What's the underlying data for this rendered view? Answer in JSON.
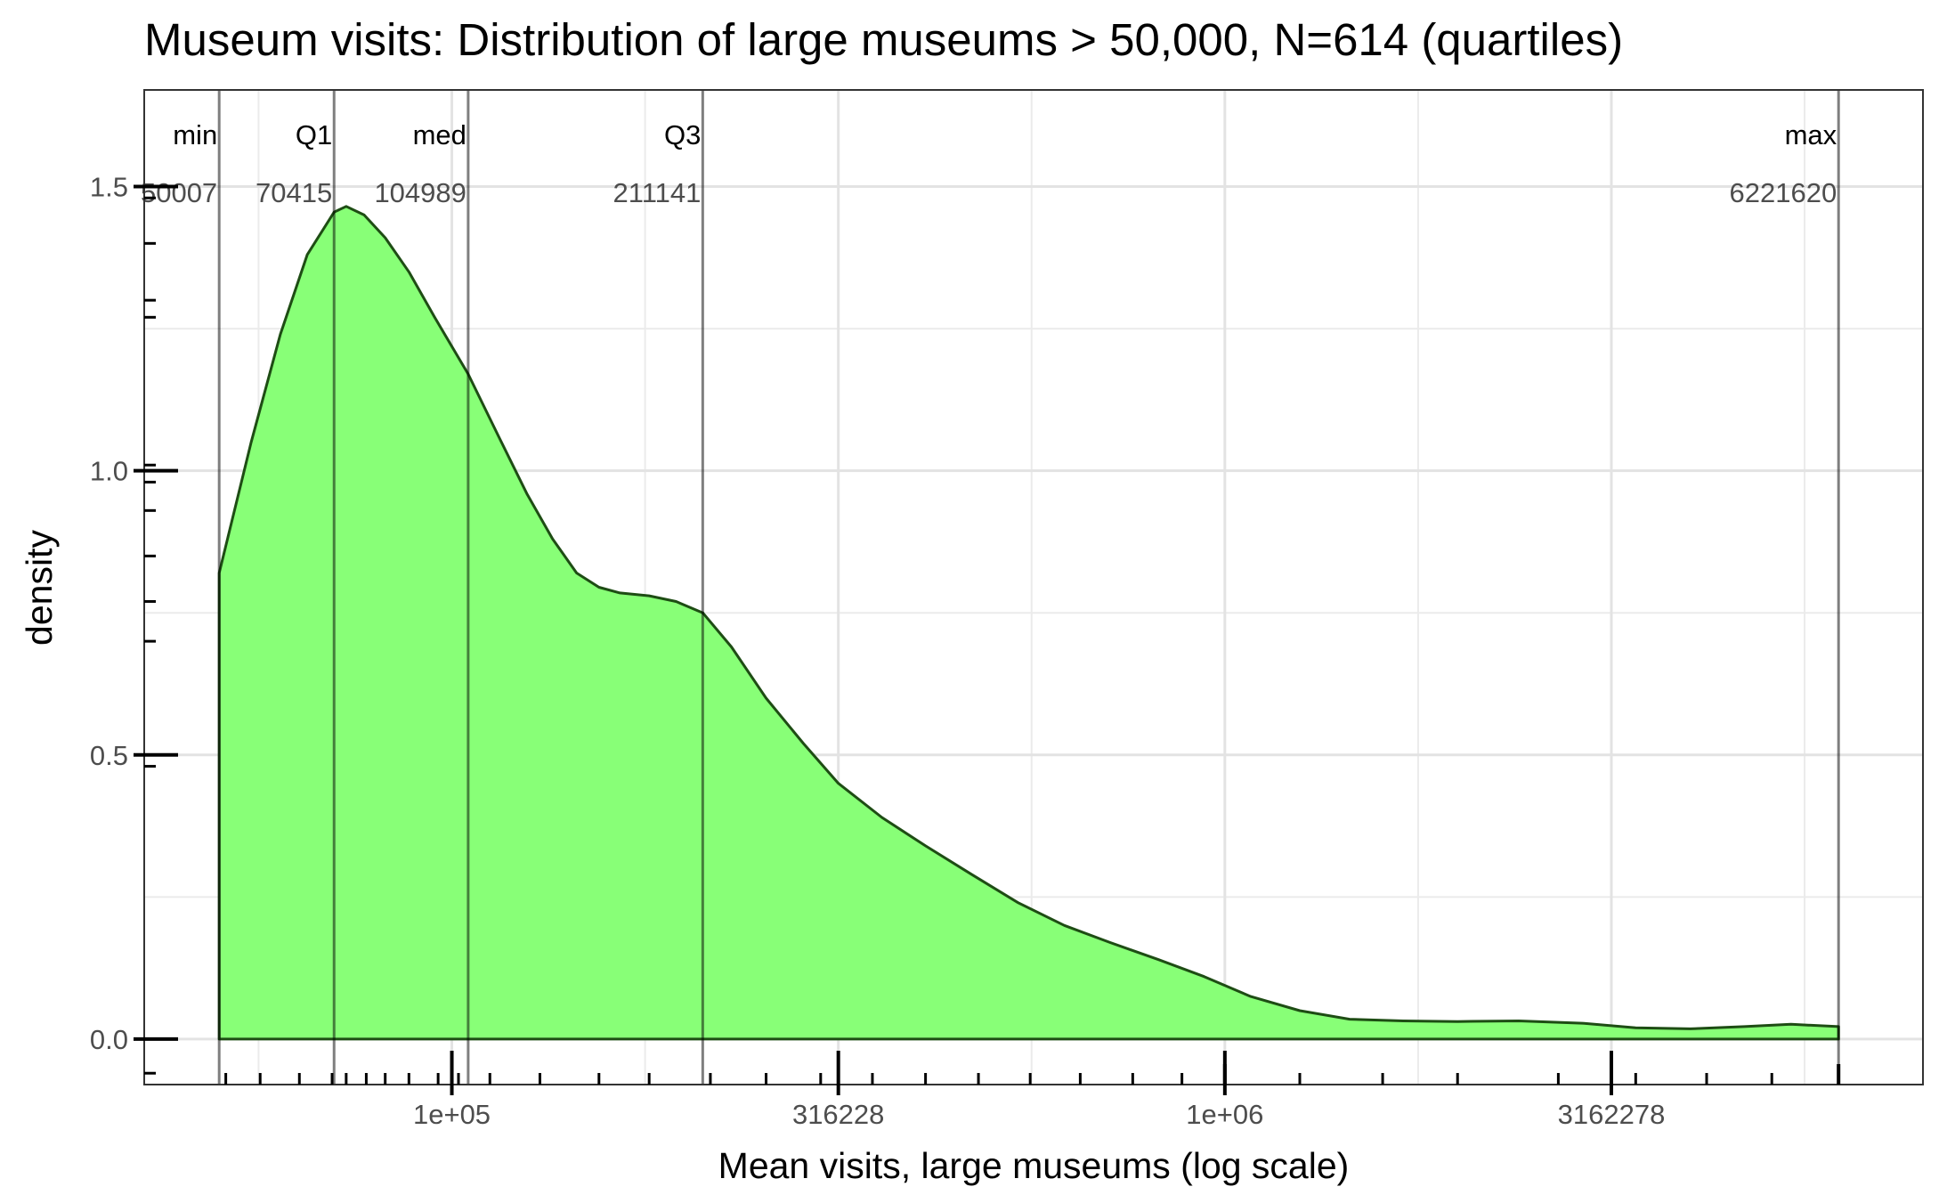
{
  "chart_data": {
    "type": "area",
    "title": "Museum visits: Distribution of large museums > 50,000, N=614 (quartiles)",
    "xlabel": "Mean visits, large museums (log scale)",
    "ylabel": "density",
    "x_scale": "log10",
    "xlim": [
      40000,
      8000000
    ],
    "ylim": [
      -0.08,
      1.67
    ],
    "x_ticks": [
      {
        "value": 100000,
        "label": "1e+05"
      },
      {
        "value": 316228,
        "label": "316228"
      },
      {
        "value": 1000000,
        "label": "1e+06"
      },
      {
        "value": 3162278,
        "label": "3162278"
      }
    ],
    "y_ticks": [
      {
        "value": 0.0,
        "label": "0.0"
      },
      {
        "value": 0.5,
        "label": "0.5"
      },
      {
        "value": 1.0,
        "label": "1.0"
      },
      {
        "value": 1.5,
        "label": "1.5"
      }
    ],
    "grid": true,
    "fill_color": "#88ff77",
    "line_color": "#1e4d14",
    "series": [
      {
        "x": [
          50007,
          55000,
          60000,
          65000,
          70415,
          73000,
          77000,
          82000,
          88000,
          95000,
          104989,
          115000,
          125000,
          135000,
          145000,
          155000,
          165000,
          180000,
          195000,
          211141,
          230000,
          255000,
          285000,
          316228,
          360000,
          410000,
          470000,
          540000,
          620000,
          710000,
          820000,
          940000,
          1080000,
          1250000,
          1450000,
          1700000,
          2000000,
          2400000,
          2900000,
          3400000,
          4000000,
          4700000,
          5400000,
          6221620
        ],
        "y": [
          0.82,
          1.05,
          1.24,
          1.38,
          1.455,
          1.465,
          1.45,
          1.41,
          1.35,
          1.27,
          1.17,
          1.06,
          0.96,
          0.88,
          0.82,
          0.795,
          0.785,
          0.78,
          0.77,
          0.75,
          0.69,
          0.6,
          0.52,
          0.45,
          0.39,
          0.34,
          0.29,
          0.24,
          0.2,
          0.17,
          0.14,
          0.11,
          0.075,
          0.05,
          0.035,
          0.032,
          0.031,
          0.032,
          0.028,
          0.02,
          0.018,
          0.022,
          0.026,
          0.022
        ]
      }
    ],
    "rug_points": [
      51000,
      56500,
      63500,
      70000,
      73000,
      77500,
      82000,
      88000,
      96000,
      102000,
      112000,
      130000,
      155000,
      180000,
      216000,
      255000,
      300000,
      350000,
      410000,
      480000,
      560000,
      650000,
      760000,
      880000,
      1000000,
      1250000,
      1600000,
      2000000,
      2700000,
      3400000,
      4200000,
      5100000,
      6221620
    ],
    "rug_left_points": [
      -0.06,
      0.48,
      0.7,
      0.77,
      0.85,
      0.93,
      0.98,
      1.01,
      1.27,
      1.3,
      1.4,
      1.48
    ],
    "summary_lines": [
      {
        "name": "min",
        "value": 50007,
        "label": "50007"
      },
      {
        "name": "Q1",
        "value": 70415,
        "label": "70415"
      },
      {
        "name": "med",
        "value": 104989,
        "label": "104989"
      },
      {
        "name": "Q3",
        "value": 211141,
        "label": "211141"
      },
      {
        "name": "max",
        "value": 6221620,
        "label": "6221620"
      }
    ]
  }
}
